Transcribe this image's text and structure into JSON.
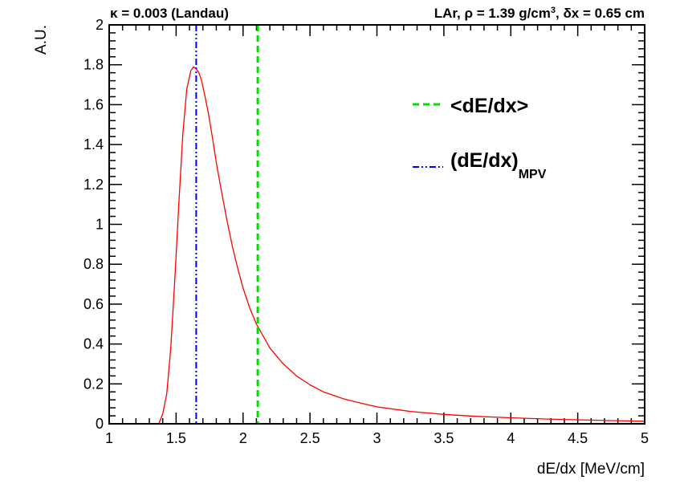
{
  "chart_data": {
    "type": "line",
    "title_left": {
      "greek": "κ",
      "rest": " = 0.003 (Landau)"
    },
    "title_right": {
      "p1": "LAr, ",
      "rho": "ρ",
      "p2": " = 1.39 g/cm",
      "sup": "3",
      "p3": ", ",
      "delta": "δ",
      "p4": "x = 0.65 cm"
    },
    "xlabel": "dE/dx [MeV/cm]",
    "ylabel": "A.U.",
    "xlim": [
      1,
      5
    ],
    "ylim": [
      0,
      2
    ],
    "x_ticks": [
      "1",
      "1.5",
      "2",
      "2.5",
      "3",
      "3.5",
      "4",
      "4.5",
      "5"
    ],
    "y_ticks": [
      "0",
      "0.2",
      "0.4",
      "0.6",
      "0.8",
      "1",
      "1.2",
      "1.4",
      "1.6",
      "1.8",
      "2"
    ],
    "mpv_line": {
      "x": 1.65,
      "color": "#0000ff",
      "style": "dash-dot-dot"
    },
    "mean_line": {
      "x": 2.11,
      "color": "#00dd00",
      "style": "dashed"
    },
    "legend": {
      "mean_label": "<dE/dx>",
      "mpv_label": "(dE/dx)",
      "mpv_sub": "MPV"
    },
    "series": [
      {
        "color": "#ff0000",
        "x": [
          1.37,
          1.4,
          1.43,
          1.46,
          1.49,
          1.52,
          1.55,
          1.58,
          1.61,
          1.63,
          1.65,
          1.67,
          1.69,
          1.71,
          1.74,
          1.77,
          1.8,
          1.84,
          1.88,
          1.92,
          1.96,
          2.0,
          2.05,
          2.1,
          2.15,
          2.2,
          2.3,
          2.4,
          2.5,
          2.6,
          2.75,
          2.9,
          3.0,
          3.25,
          3.5,
          3.75,
          4.0,
          4.25,
          4.5,
          4.75,
          5.0
        ],
        "y": [
          0.0,
          0.05,
          0.15,
          0.38,
          0.72,
          1.1,
          1.45,
          1.68,
          1.77,
          1.79,
          1.78,
          1.76,
          1.72,
          1.66,
          1.56,
          1.44,
          1.31,
          1.16,
          1.02,
          0.89,
          0.78,
          0.68,
          0.58,
          0.5,
          0.44,
          0.38,
          0.3,
          0.24,
          0.195,
          0.16,
          0.125,
          0.1,
          0.085,
          0.062,
          0.047,
          0.037,
          0.03,
          0.024,
          0.02,
          0.016,
          0.013
        ]
      }
    ]
  }
}
